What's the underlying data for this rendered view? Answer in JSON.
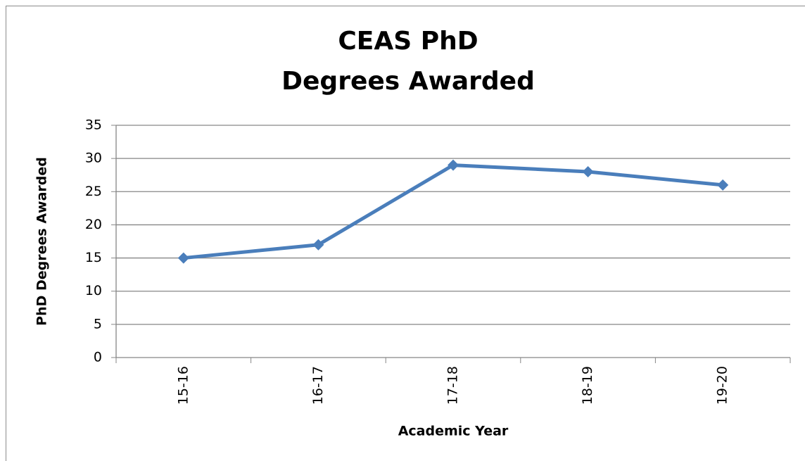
{
  "chart_data": {
    "type": "line",
    "title": [
      "CEAS PhD",
      "Degrees Awarded"
    ],
    "x_label": "Academic Year",
    "y_label": "PhD Degrees Awarded",
    "categories": [
      "15-16",
      "16-17",
      "17-18",
      "18-19",
      "19-20"
    ],
    "values": [
      15,
      17,
      29,
      28,
      26
    ],
    "color": "#4a7ebb",
    "ylim": [
      0,
      35
    ],
    "yticks": [
      0,
      5,
      10,
      15,
      20,
      25,
      30,
      35
    ],
    "grid": true
  }
}
